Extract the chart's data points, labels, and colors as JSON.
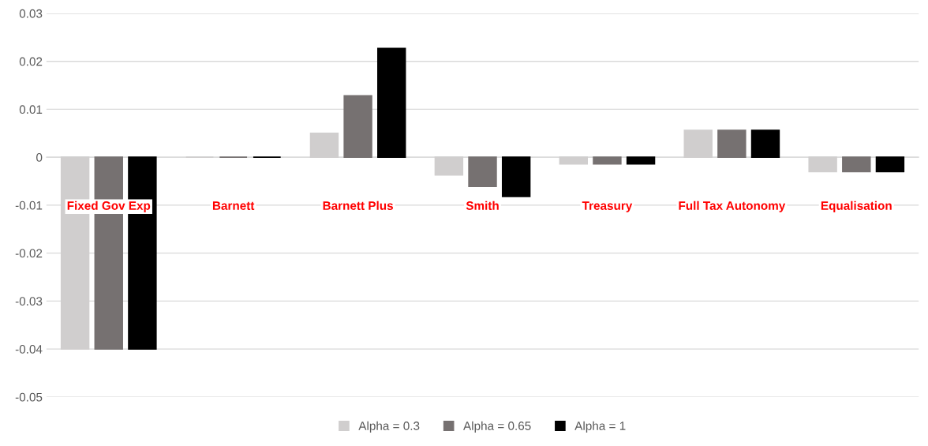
{
  "chart_data": {
    "type": "bar",
    "categories": [
      "Fixed Gov Exp",
      "Barnett",
      "Barnett Plus",
      "Smith",
      "Treasury",
      "Full Tax Autonomy",
      "Equalisation"
    ],
    "series": [
      {
        "name": "Alpha = 0.3",
        "color": "#d0cece",
        "values": [
          -0.04,
          0,
          0.005,
          -0.0037,
          -0.0014,
          0.0056,
          -0.003
        ]
      },
      {
        "name": "Alpha = 0.65",
        "color": "#767171",
        "values": [
          -0.04,
          0,
          0.0128,
          -0.0061,
          -0.0014,
          0.0056,
          -0.003
        ]
      },
      {
        "name": "Alpha = 1",
        "color": "#000000",
        "values": [
          -0.04,
          0,
          0.0227,
          -0.0082,
          -0.0014,
          0.0056,
          -0.003
        ]
      }
    ],
    "ylim": [
      -0.05,
      0.03
    ],
    "yticks": [
      -0.05,
      -0.04,
      -0.03,
      -0.02,
      -0.01,
      0,
      0.01,
      0.02,
      0.03
    ],
    "grid": "y",
    "legend": "bottom"
  }
}
